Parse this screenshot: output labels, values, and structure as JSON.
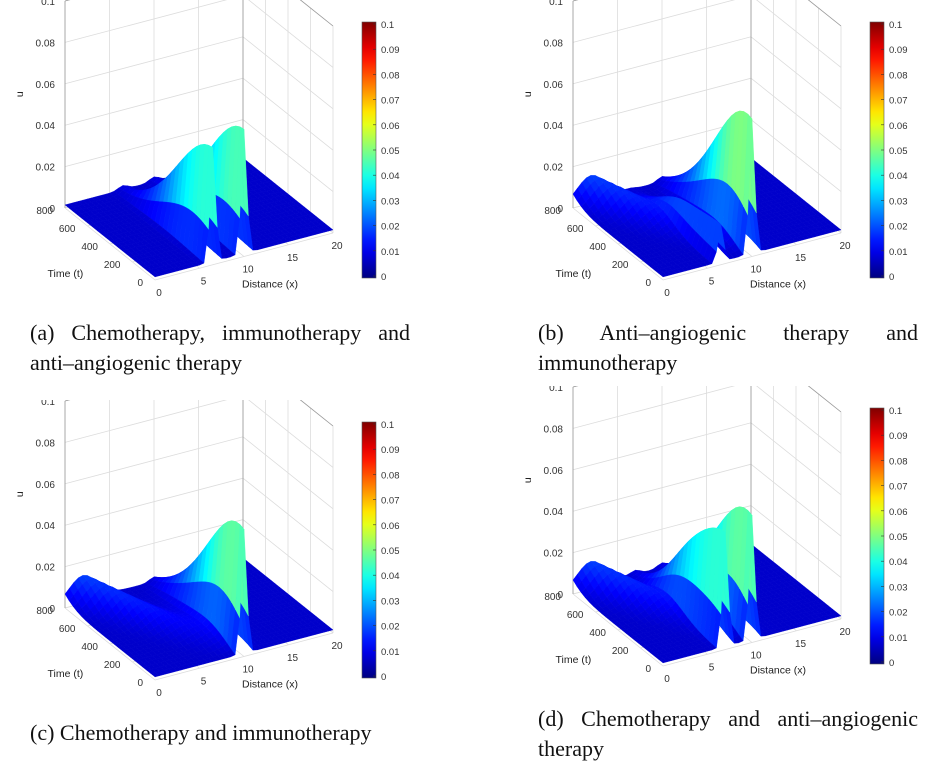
{
  "chart_data": [
    {
      "id": "a",
      "type": "surface3d",
      "caption": "(a) Chemotherapy, immunotherapy and anti–angiogenic therapy",
      "xlabel": "Distance (x)",
      "ylabel": "Time (t)",
      "zlabel": "u",
      "x_ticks": [
        "0",
        "5",
        "10",
        "15",
        "20"
      ],
      "y_ticks": [
        "0",
        "200",
        "400",
        "600",
        "800"
      ],
      "z_ticks": [
        "0",
        "0.02",
        "0.04",
        "0.06",
        "0.08",
        "0.1"
      ],
      "xlim": [
        0,
        20
      ],
      "ylim": [
        0,
        800
      ],
      "zlim": [
        0,
        0.1
      ],
      "colorbar_ticks": [
        "0",
        "0.01",
        "0.02",
        "0.03",
        "0.04",
        "0.05",
        "0.06",
        "0.07",
        "0.08",
        "0.09",
        "0.1"
      ],
      "peaks": [
        {
          "x": 6.5,
          "t": 0,
          "u": 0.055
        },
        {
          "x": 10.0,
          "t": 0,
          "u": 0.06
        }
      ],
      "ridge": null
    },
    {
      "id": "b",
      "type": "surface3d",
      "caption": "(b) Anti–angiogenic therapy and immunotherapy",
      "xlabel": "Distance (x)",
      "ylabel": "Time (t)",
      "zlabel": "u",
      "x_ticks": [
        "0",
        "5",
        "10",
        "15",
        "20"
      ],
      "y_ticks": [
        "0",
        "200",
        "400",
        "600",
        "800"
      ],
      "z_ticks": [
        "0",
        "0.02",
        "0.04",
        "0.06",
        "0.08",
        "0.1"
      ],
      "xlim": [
        0,
        20
      ],
      "ylim": [
        0,
        800
      ],
      "zlim": [
        0,
        0.1
      ],
      "colorbar_ticks": [
        "0",
        "0.01",
        "0.02",
        "0.03",
        "0.04",
        "0.05",
        "0.06",
        "0.07",
        "0.08",
        "0.09",
        "0.1"
      ],
      "peaks": [
        {
          "x": 6.5,
          "t": 0,
          "u": 0.018
        },
        {
          "x": 10.0,
          "t": 0,
          "u": 0.065
        }
      ],
      "ridge": {
        "x0": 2,
        "t0": 800,
        "u": 0.012
      }
    },
    {
      "id": "c",
      "type": "surface3d",
      "caption": "(c) Chemotherapy and immunotherapy",
      "xlabel": "Distance (x)",
      "ylabel": "Time (t)",
      "zlabel": "u",
      "x_ticks": [
        "0",
        "5",
        "10",
        "15",
        "20"
      ],
      "y_ticks": [
        "0",
        "200",
        "400",
        "600",
        "800"
      ],
      "z_ticks": [
        "0",
        "0.02",
        "0.04",
        "0.06",
        "0.08",
        "0.1"
      ],
      "xlim": [
        0,
        20
      ],
      "ylim": [
        0,
        800
      ],
      "zlim": [
        0,
        0.1
      ],
      "colorbar_ticks": [
        "0",
        "0.01",
        "0.02",
        "0.03",
        "0.04",
        "0.05",
        "0.06",
        "0.07",
        "0.08",
        "0.09",
        "0.1"
      ],
      "peaks": [
        {
          "x": 10.0,
          "t": 0,
          "u": 0.06
        }
      ],
      "ridge": {
        "x0": 2,
        "t0": 800,
        "u": 0.012
      }
    },
    {
      "id": "d",
      "type": "surface3d",
      "caption": "(d) Chemotherapy and anti–angiogenic therapy",
      "xlabel": "Distance (x)",
      "ylabel": "Time (t)",
      "zlabel": "u",
      "x_ticks": [
        "0",
        "5",
        "10",
        "15",
        "20"
      ],
      "y_ticks": [
        "0",
        "200",
        "400",
        "600",
        "800"
      ],
      "z_ticks": [
        "0",
        "0.02",
        "0.04",
        "0.06",
        "0.08",
        "0.1"
      ],
      "xlim": [
        0,
        20
      ],
      "ylim": [
        0,
        800
      ],
      "zlim": [
        0,
        0.1
      ],
      "colorbar_ticks": [
        "0",
        "0.01",
        "0.02",
        "0.03",
        "0.04",
        "0.05",
        "0.06",
        "0.07",
        "0.08",
        "0.09",
        "0.1"
      ],
      "peaks": [
        {
          "x": 7.0,
          "t": 0,
          "u": 0.055
        },
        {
          "x": 10.0,
          "t": 0,
          "u": 0.06
        }
      ],
      "ridge": {
        "x0": 2,
        "t0": 800,
        "u": 0.012
      }
    }
  ]
}
